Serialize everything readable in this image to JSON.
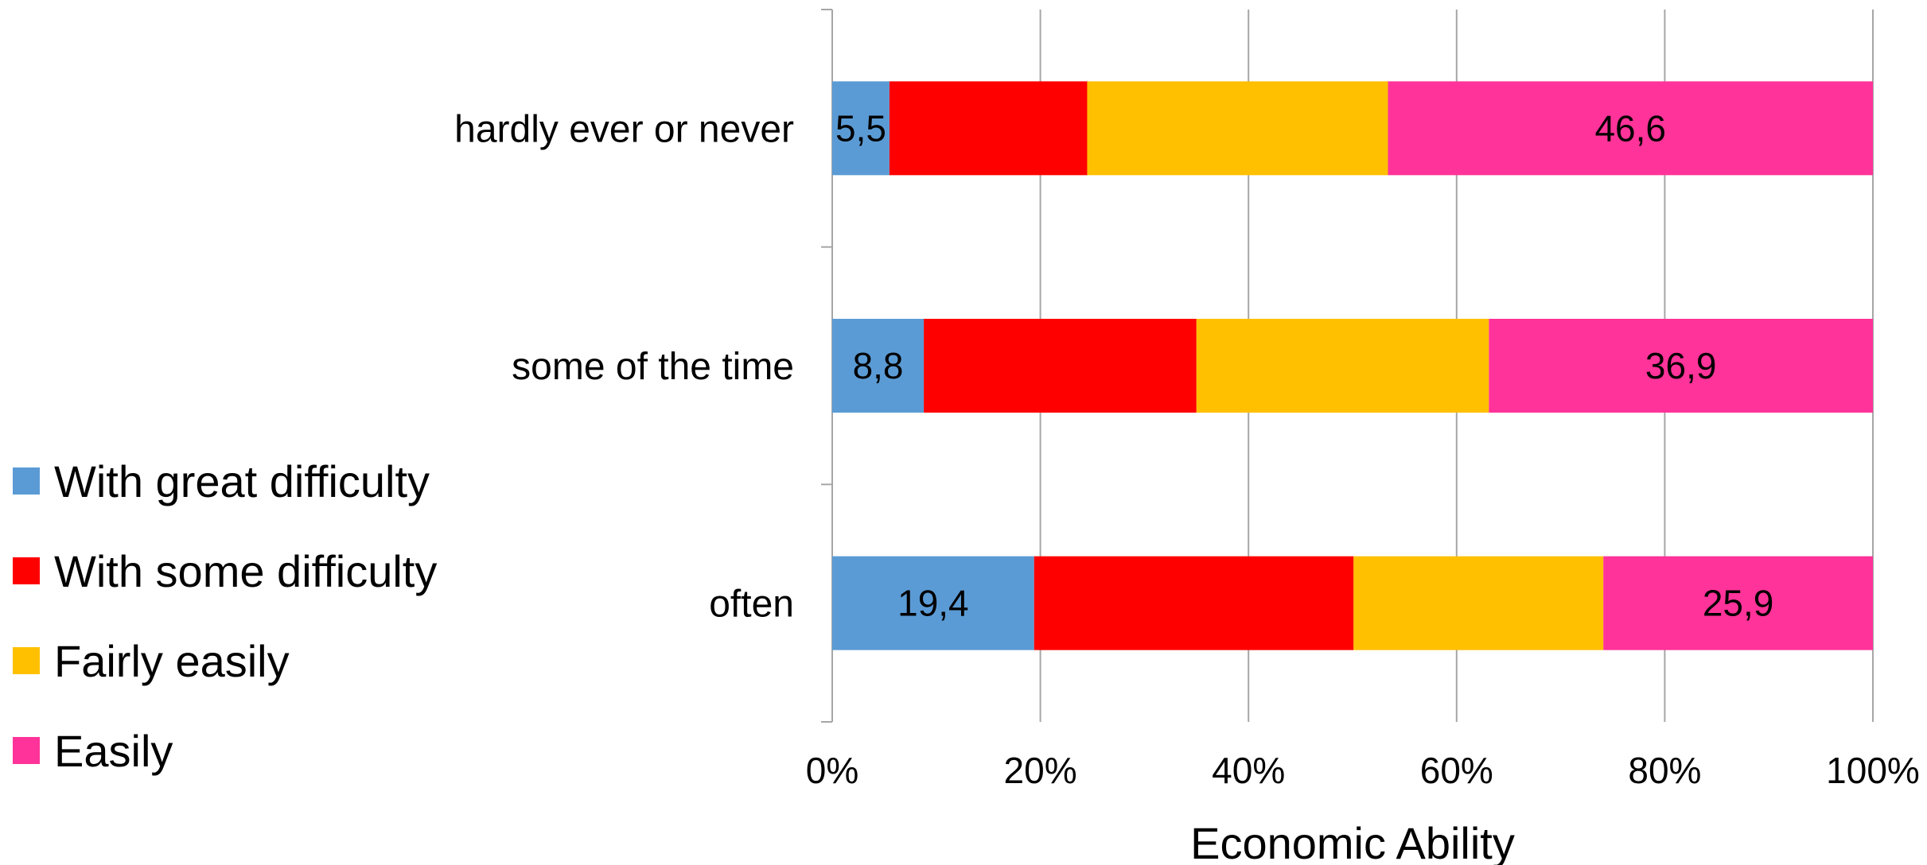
{
  "chart_data": {
    "type": "bar",
    "orientation": "horizontal",
    "stacked": "percent",
    "categories": [
      "hardly ever or never",
      "some of the time",
      "often"
    ],
    "series": [
      {
        "name": "With great difficulty",
        "color": "#5B9BD5",
        "values": [
          5.5,
          8.8,
          19.4
        ],
        "labels": [
          "5,5",
          "8,8",
          "19,4"
        ]
      },
      {
        "name": "With some difficulty",
        "color": "#FF0000",
        "values": [
          19.0,
          26.2,
          30.7
        ],
        "labels": [
          "",
          "",
          ""
        ]
      },
      {
        "name": "Fairly easily",
        "color": "#FFC000",
        "values": [
          28.9,
          28.1,
          24.0
        ],
        "labels": [
          "",
          "",
          ""
        ]
      },
      {
        "name": "Easily",
        "color": "#FF3399",
        "values": [
          46.6,
          36.9,
          25.9
        ],
        "labels": [
          "46,6",
          "36,9",
          "25,9"
        ]
      }
    ],
    "xlabel": "Economic Ability",
    "ylabel": "",
    "xlim": [
      0,
      100
    ],
    "xticks": [
      "0%",
      "20%",
      "40%",
      "60%",
      "80%",
      "100%"
    ],
    "grid": "vertical",
    "legend_position": "left"
  }
}
